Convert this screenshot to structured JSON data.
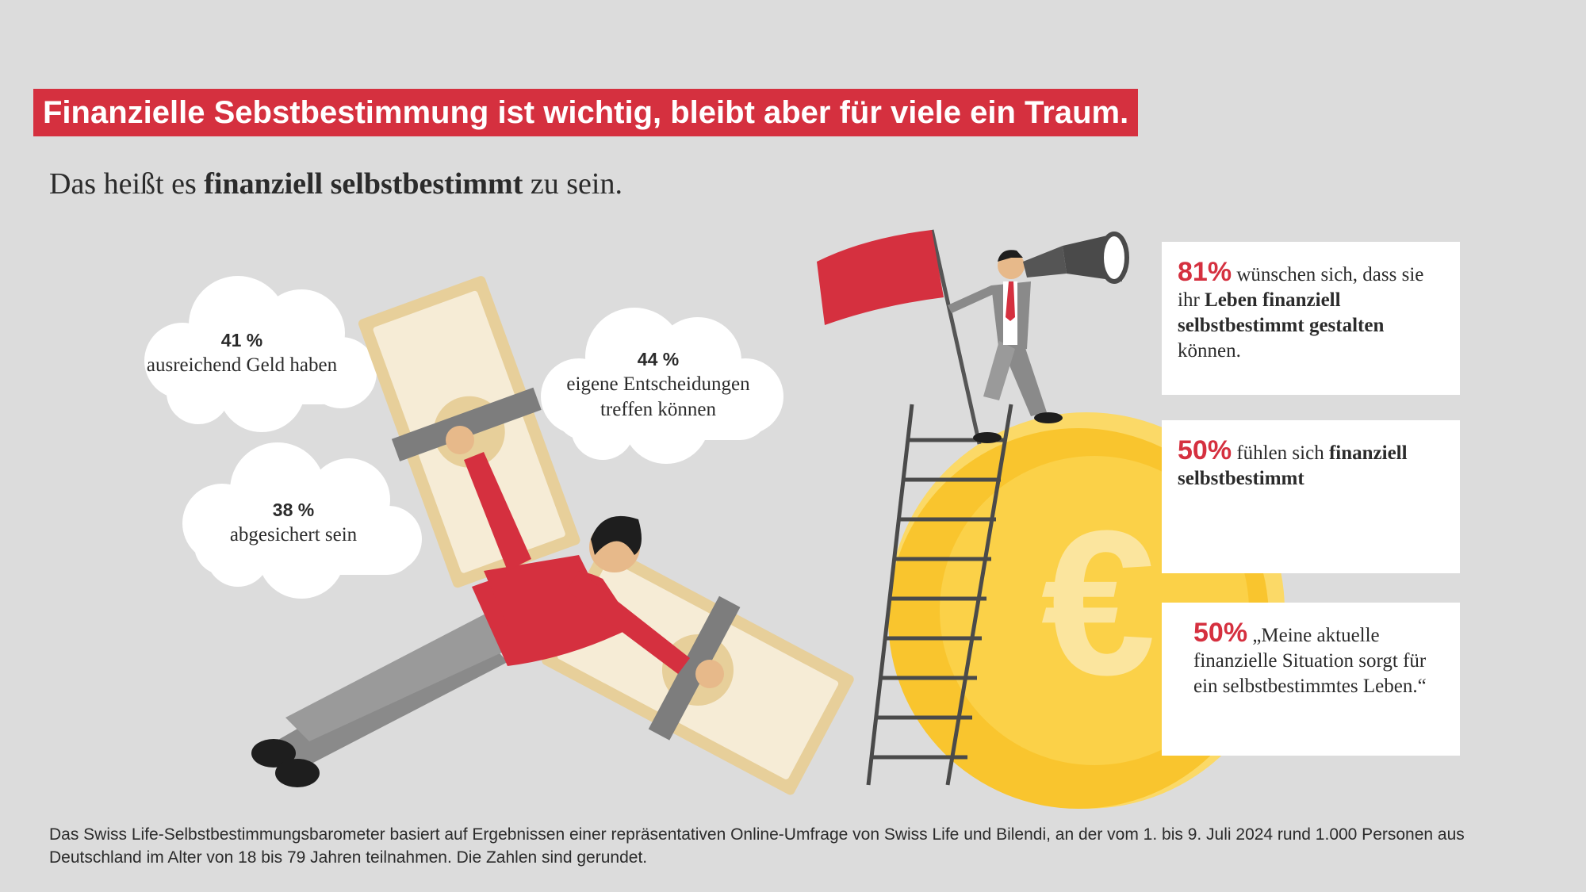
{
  "title": "Finanzielle Sebstbestimmung ist wichtig, bleibt aber für viele ein Traum.",
  "subtitle": {
    "prefix": "Das heißt es",
    "bold": "finanziell selbstbestimmt",
    "suffix": "zu sein."
  },
  "clouds": [
    {
      "pct": "41 %",
      "line1": "ausreichend Geld haben",
      "line2": ""
    },
    {
      "pct": "44 %",
      "line1": "eigene Entscheidungen",
      "line2": "treffen können"
    },
    {
      "pct": "38 %",
      "line1": "abgesichert sein",
      "line2": ""
    }
  ],
  "cards": [
    {
      "pct": "81%",
      "text1": "wünschen sich, dass sie ihr",
      "bold": "Leben finanziell selbstbestimmt gestalten",
      "text2": "können."
    },
    {
      "pct": "50%",
      "text1": "fühlen sich",
      "bold": "finanziell selbstbestimmt",
      "text2": ""
    },
    {
      "pct": "50%",
      "text1": "„Meine aktuelle finanzielle Situation sorgt für ein selbstbestimmtes Leben.“",
      "bold": "",
      "text2": ""
    }
  ],
  "footnote": "Das Swiss Life-Selbstbestimmungsbarometer basiert auf Ergebnissen einer repräsentativen Online-Umfrage von Swiss Life und Bilendi, an der vom 1. bis 9. Juli 2024 rund 1.000 Personen aus Deutschland im Alter von 18 bis 79 Jahren teilnahmen. Die Zahlen sind gerundet.",
  "colors": {
    "accent": "#d5303f",
    "background": "#dcdcdc",
    "coin": "#f9c52e",
    "banknote": "#f1e2bd"
  },
  "icons": [
    "flying-man-illustration",
    "banknote-wing-icon",
    "cloud-icon",
    "euro-coin-icon",
    "ladder-icon",
    "flag-icon",
    "telescope-icon",
    "businessman-illustration"
  ]
}
